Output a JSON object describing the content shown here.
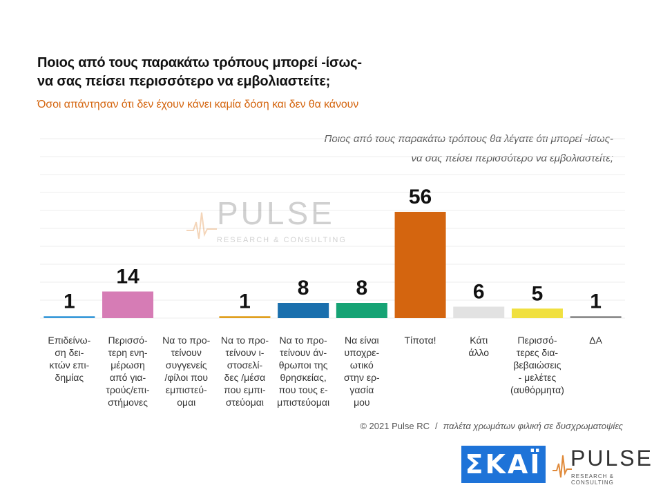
{
  "header": {
    "title_line1": "Ποιος από τους παρακάτω τρόπους μπορεί -ίσως-",
    "title_line2": "να σας πείσει περισσότερο να εμβολιαστείτε;",
    "subtitle": "Όσοι απάντησαν ότι δεν έχουν κάνει καμία δόση και δεν θα κάνουν",
    "question_line1": "Ποιος από τους παρακάτω τρόπους θα λέγατε ότι μπορεί -ίσως-",
    "question_line2": "να σας πείσει περισσότερο να εμβολιαστείτε;"
  },
  "watermark": {
    "brand": "PULSE",
    "tagline": "RESEARCH & CONSULTING"
  },
  "chart_data": {
    "type": "bar",
    "categories": [
      "Επιδείνω-\nση δει-\nκτών επι-\nδημίας",
      "Περισσό-\nτερη ενη-\nμέρωση\nαπό για-\nτρούς/επι-\nστήμονες",
      "Να το προ-\nτείνουν\nσυγγενείς\n/φίλοι που\nεμπιστεύ-\nομαι",
      "Να το προ-\nτείνουν ι-\nστοσελί-\nδες /μέσα\nπου εμπι-\nστεύομαι",
      "Να το προ-\nτείνουν άν-\nθρωποι της\nθρησκείας,\nπου τους ε-\nμπιστεύομαι",
      "Να είναι\nυποχρε-\nωτικό\nστην ερ-\nγασία\nμου",
      "Τίποτα!",
      "Κάτι\nάλλο",
      "Περισσό-\nτερες δια-\nβεβαιώσεις\n- μελέτες\n(αυθόρμητα)",
      "ΔΑ"
    ],
    "values": [
      1,
      14,
      null,
      1,
      8,
      8,
      56,
      6,
      5,
      1
    ],
    "value_labels": [
      "1",
      "14",
      "",
      "1",
      "8",
      "8",
      "56",
      "6",
      "5",
      "1"
    ],
    "colors": [
      "#3a9ad9",
      "#d67cb5",
      "#999999",
      "#e0a020",
      "#1a6fad",
      "#16a374",
      "#d4650f",
      "#e2e2e2",
      "#f0e040",
      "#8c8c8c"
    ],
    "ylim": [
      0,
      60
    ],
    "grid": true,
    "title": "Ποιος από τους παρακάτω τρόπους μπορεί -ίσως- να σας πείσει περισσότερο να εμβολιαστείτε;",
    "subtitle": "Όσοι απάντησαν ότι δεν έχουν κάνει καμία δόση και δεν θα κάνουν",
    "xlabel": "",
    "ylabel": ""
  },
  "footer": {
    "copyright": "© 2021 Pulse RC",
    "separator": "/",
    "palette_note": "παλέτα χρωμάτων φιλική σε δυσχρωματοψίες"
  },
  "logos": {
    "skai": "ΣΚΑΪ",
    "pulse": "PULSE",
    "pulse_tagline": "RESEARCH & CONSULTING"
  }
}
